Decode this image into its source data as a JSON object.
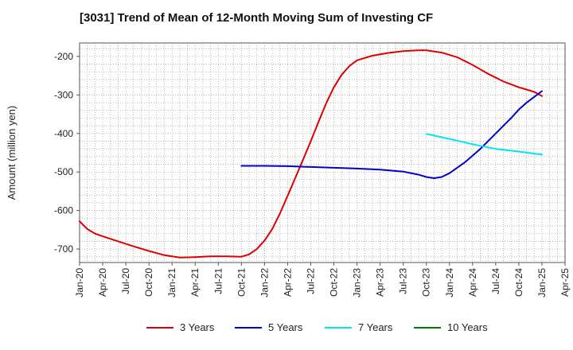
{
  "chart_data": {
    "type": "line",
    "title": "[3031]  Trend of Mean of 12-Month Moving Sum of Investing CF",
    "xlabel": "",
    "ylabel": "Amount (million yen)",
    "ylim": [
      -735,
      -165
    ],
    "yticks": [
      -200,
      -300,
      -400,
      -500,
      -600,
      -700
    ],
    "xticks": [
      "Jan-20",
      "Apr-20",
      "Jul-20",
      "Oct-20",
      "Jan-21",
      "Apr-21",
      "Jul-21",
      "Oct-21",
      "Jan-22",
      "Apr-22",
      "Jul-22",
      "Oct-22",
      "Jan-23",
      "Apr-23",
      "Jul-23",
      "Oct-23",
      "Jan-24",
      "Apr-24",
      "Jul-24",
      "Oct-24",
      "Jan-25",
      "Apr-25"
    ],
    "grid": true,
    "legend_position": "bottom",
    "series": [
      {
        "name": "3 Years",
        "color": "#dd0000",
        "points": [
          [
            "Jan-20",
            -628
          ],
          [
            "Feb-20",
            -648
          ],
          [
            "Mar-20",
            -660
          ],
          [
            "Apr-20",
            -667
          ],
          [
            "Jun-20",
            -680
          ],
          [
            "Aug-20",
            -693
          ],
          [
            "Oct-20",
            -705
          ],
          [
            "Dec-20",
            -716
          ],
          [
            "Feb-21",
            -722
          ],
          [
            "Apr-21",
            -721
          ],
          [
            "Jun-21",
            -719
          ],
          [
            "Aug-21",
            -719
          ],
          [
            "Oct-21",
            -720
          ],
          [
            "Nov-21",
            -714
          ],
          [
            "Dec-21",
            -700
          ],
          [
            "Jan-22",
            -678
          ],
          [
            "Feb-22",
            -648
          ],
          [
            "Mar-22",
            -608
          ],
          [
            "Apr-22",
            -562
          ],
          [
            "May-22",
            -515
          ],
          [
            "Jun-22",
            -468
          ],
          [
            "Jul-22",
            -420
          ],
          [
            "Aug-22",
            -370
          ],
          [
            "Sep-22",
            -322
          ],
          [
            "Oct-22",
            -280
          ],
          [
            "Nov-22",
            -248
          ],
          [
            "Dec-22",
            -225
          ],
          [
            "Jan-23",
            -210
          ],
          [
            "Mar-23",
            -198
          ],
          [
            "May-23",
            -191
          ],
          [
            "Jul-23",
            -186
          ],
          [
            "Sep-23",
            -184
          ],
          [
            "Oct-23",
            -184
          ],
          [
            "Dec-23",
            -190
          ],
          [
            "Feb-24",
            -202
          ],
          [
            "Apr-24",
            -222
          ],
          [
            "Jun-24",
            -245
          ],
          [
            "Aug-24",
            -265
          ],
          [
            "Oct-24",
            -280
          ],
          [
            "Dec-24",
            -292
          ],
          [
            "Jan-25",
            -303
          ]
        ]
      },
      {
        "name": "5 Years",
        "color": "#0000cc",
        "points": [
          [
            "Oct-21",
            -484
          ],
          [
            "Jan-22",
            -484
          ],
          [
            "Apr-22",
            -485
          ],
          [
            "Jul-22",
            -487
          ],
          [
            "Oct-22",
            -489
          ],
          [
            "Jan-23",
            -491
          ],
          [
            "Apr-23",
            -494
          ],
          [
            "Jul-23",
            -499
          ],
          [
            "Sep-23",
            -507
          ],
          [
            "Oct-23",
            -513
          ],
          [
            "Nov-23",
            -516
          ],
          [
            "Dec-23",
            -513
          ],
          [
            "Jan-24",
            -503
          ],
          [
            "Mar-24",
            -475
          ],
          [
            "May-24",
            -440
          ],
          [
            "Jul-24",
            -400
          ],
          [
            "Sep-24",
            -360
          ],
          [
            "Oct-24",
            -338
          ],
          [
            "Nov-24",
            -320
          ],
          [
            "Dec-24",
            -305
          ],
          [
            "Jan-25",
            -290
          ]
        ]
      },
      {
        "name": "7 Years",
        "color": "#00e5ee",
        "points": [
          [
            "Oct-23",
            -401
          ],
          [
            "Jan-24",
            -414
          ],
          [
            "Apr-24",
            -428
          ],
          [
            "Jul-24",
            -440
          ],
          [
            "Oct-24",
            -447
          ],
          [
            "Jan-25",
            -455
          ]
        ]
      },
      {
        "name": "10 Years",
        "color": "#008000",
        "points": []
      }
    ]
  }
}
